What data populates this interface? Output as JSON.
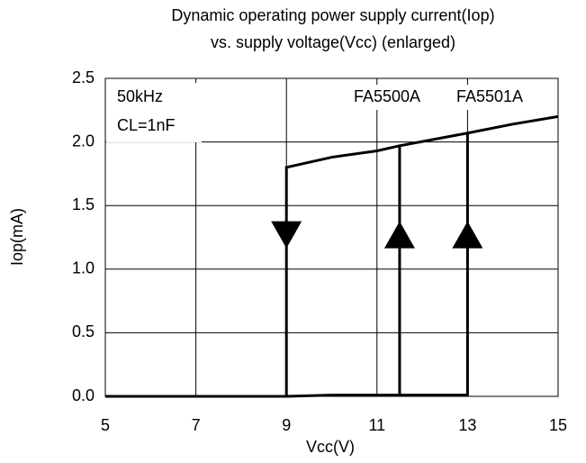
{
  "chart_data": {
    "type": "line",
    "title": [
      "Dynamic operating power supply current(Iop)",
      "vs. supply voltage(Vcc) (enlarged)"
    ],
    "x_label": "Vcc(V)",
    "y_label": "Iop(mA)",
    "xlim": [
      5,
      15
    ],
    "ylim": [
      0,
      2.5
    ],
    "xticks": [
      5,
      7,
      9,
      11,
      13,
      15
    ],
    "yticks": [
      {
        "value": 0,
        "label": "0.0"
      },
      0.5,
      {
        "value": 1,
        "label": "1.0"
      },
      1.5,
      {
        "value": 2,
        "label": "2.0"
      },
      2.5
    ],
    "grid": true,
    "color": "#000000",
    "series": [
      {
        "x": [
          5,
          9,
          9,
          10,
          11,
          11.5,
          13,
          14,
          15
        ],
        "values": [
          0,
          0,
          1.8,
          1.88,
          1.93,
          1.97,
          2.07,
          2.14,
          2.2
        ]
      },
      {
        "x": [
          9,
          10,
          11.5,
          11.5
        ],
        "values": [
          0,
          0.01,
          0.01,
          1.97
        ]
      },
      {
        "x": [
          11.5,
          13,
          13
        ],
        "values": [
          0.01,
          0.01,
          2.07
        ]
      }
    ],
    "arrows": [
      {
        "x": 9,
        "y": 1.27,
        "direction": "down"
      },
      {
        "x": 11.5,
        "y": 1.27,
        "direction": "up"
      },
      {
        "x": 13,
        "y": 1.27,
        "direction": "up"
      }
    ],
    "annotations": [
      "50kHz",
      "CL=1nF",
      "FA5500A",
      "FA5501A"
    ]
  }
}
